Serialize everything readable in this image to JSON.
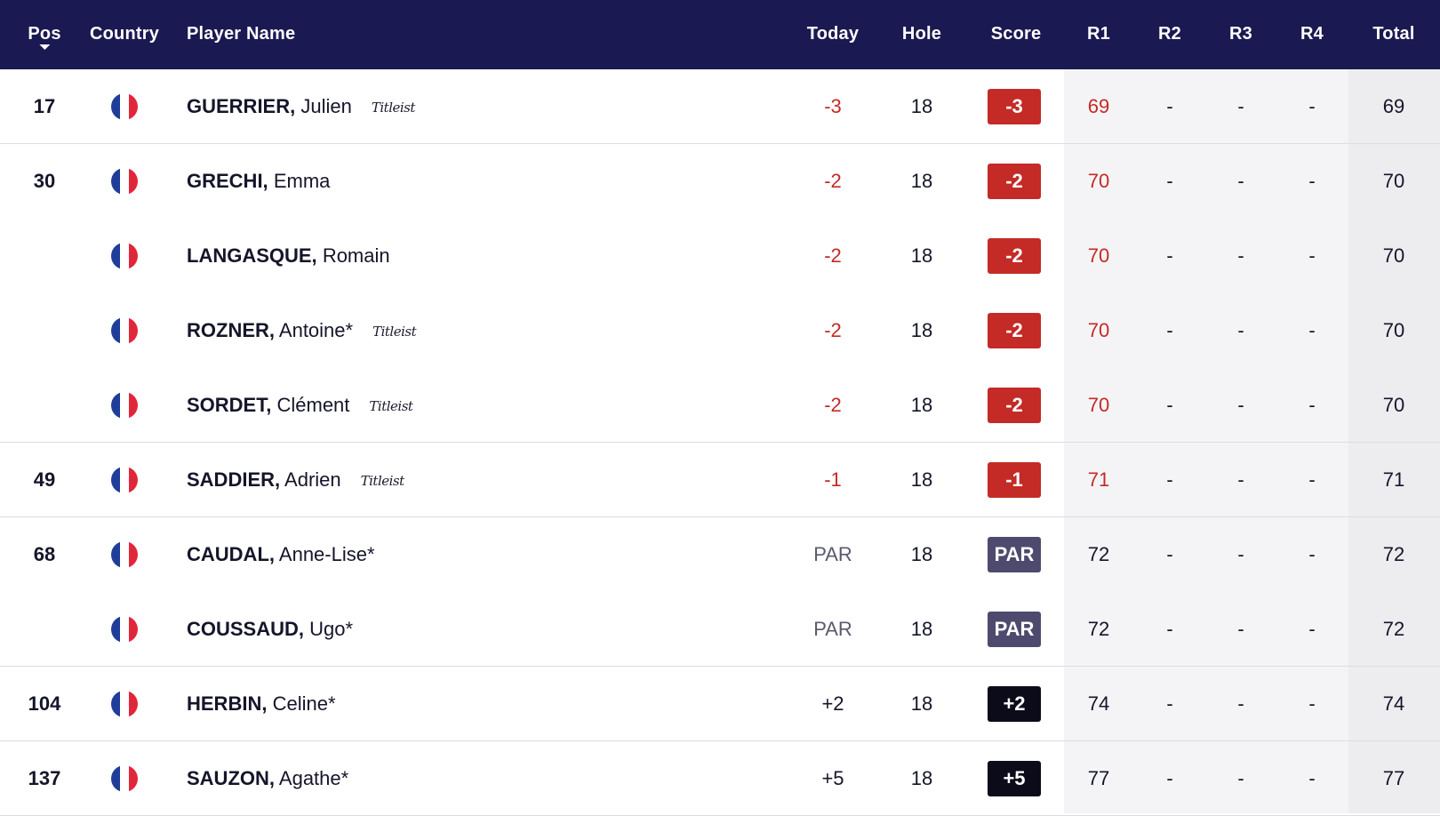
{
  "header": {
    "pos": "Pos",
    "country": "Country",
    "player_name": "Player Name",
    "today": "Today",
    "hole": "Hole",
    "score": "Score",
    "r1": "R1",
    "r2": "R2",
    "r3": "R3",
    "r4": "R4",
    "total": "Total"
  },
  "colors": {
    "header_bg": "#1b1951",
    "under_par": "#c42a26",
    "par_badge": "#4d4a6e",
    "over_par_badge": "#0b0b1a",
    "flag_blue": "#1f3d99",
    "flag_white": "#ffffff",
    "flag_red": "#e2263a"
  },
  "rows": [
    {
      "pos": "17",
      "country": "france-flag-icon",
      "surname": "GUERRIER,",
      "given": "Julien",
      "sponsor": "Titleist",
      "today": "-3",
      "hole": "18",
      "score": "-3",
      "status": "under",
      "r1": "69",
      "r2": "-",
      "r3": "-",
      "r4": "-",
      "total": "69"
    },
    {
      "pos": "30",
      "country": "france-flag-icon",
      "surname": "GRECHI,",
      "given": "Emma",
      "sponsor": "",
      "today": "-2",
      "hole": "18",
      "score": "-2",
      "status": "under",
      "r1": "70",
      "r2": "-",
      "r3": "-",
      "r4": "-",
      "total": "70"
    },
    {
      "pos": "",
      "country": "france-flag-icon",
      "surname": "LANGASQUE,",
      "given": "Romain",
      "sponsor": "",
      "today": "-2",
      "hole": "18",
      "score": "-2",
      "status": "under",
      "r1": "70",
      "r2": "-",
      "r3": "-",
      "r4": "-",
      "total": "70"
    },
    {
      "pos": "",
      "country": "france-flag-icon",
      "surname": "ROZNER,",
      "given": "Antoine*",
      "sponsor": "Titleist",
      "today": "-2",
      "hole": "18",
      "score": "-2",
      "status": "under",
      "r1": "70",
      "r2": "-",
      "r3": "-",
      "r4": "-",
      "total": "70"
    },
    {
      "pos": "",
      "country": "france-flag-icon",
      "surname": "SORDET,",
      "given": "Clément",
      "sponsor": "Titleist",
      "today": "-2",
      "hole": "18",
      "score": "-2",
      "status": "under",
      "r1": "70",
      "r2": "-",
      "r3": "-",
      "r4": "-",
      "total": "70"
    },
    {
      "pos": "49",
      "country": "france-flag-icon",
      "surname": "SADDIER,",
      "given": "Adrien",
      "sponsor": "Titleist",
      "today": "-1",
      "hole": "18",
      "score": "-1",
      "status": "under",
      "r1": "71",
      "r2": "-",
      "r3": "-",
      "r4": "-",
      "total": "71"
    },
    {
      "pos": "68",
      "country": "france-flag-icon",
      "surname": "CAUDAL,",
      "given": "Anne-Lise*",
      "sponsor": "",
      "today": "PAR",
      "hole": "18",
      "score": "PAR",
      "status": "even",
      "r1": "72",
      "r2": "-",
      "r3": "-",
      "r4": "-",
      "total": "72"
    },
    {
      "pos": "",
      "country": "france-flag-icon",
      "surname": "COUSSAUD,",
      "given": "Ugo*",
      "sponsor": "",
      "today": "PAR",
      "hole": "18",
      "score": "PAR",
      "status": "even",
      "r1": "72",
      "r2": "-",
      "r3": "-",
      "r4": "-",
      "total": "72"
    },
    {
      "pos": "104",
      "country": "france-flag-icon",
      "surname": "HERBIN,",
      "given": "Celine*",
      "sponsor": "",
      "today": "+2",
      "hole": "18",
      "score": "+2",
      "status": "over",
      "r1": "74",
      "r2": "-",
      "r3": "-",
      "r4": "-",
      "total": "74"
    },
    {
      "pos": "137",
      "country": "france-flag-icon",
      "surname": "SAUZON,",
      "given": "Agathe*",
      "sponsor": "",
      "today": "+5",
      "hole": "18",
      "score": "+5",
      "status": "over",
      "r1": "77",
      "r2": "-",
      "r3": "-",
      "r4": "-",
      "total": "77"
    }
  ]
}
